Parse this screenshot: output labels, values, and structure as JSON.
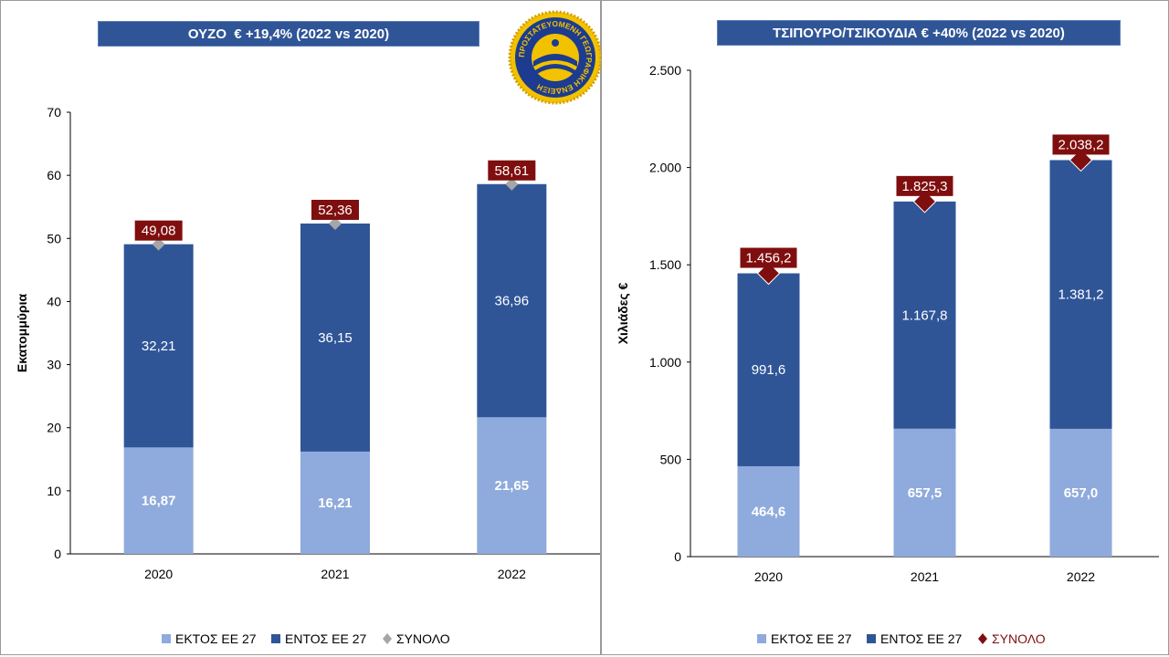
{
  "titles": {
    "left": "ΟΥΖΟ  € +19,4% (2022 vs 2020)",
    "right": "ΤΣΙΠΟΥΡΟ/ΤΣΙΚΟΥΔΙΑ € +40% (2022 vs 2020)"
  },
  "seal": {
    "text": "ΠΡΟΣΤΑΤΕΥΟΜΕΝΗ ΓΕΩΓΡΑΦΙΚΗ ΕΝΔΕΙΞΗ"
  },
  "colors": {
    "outside_eu": "#8faadc",
    "inside_eu": "#2f5597",
    "total_left": "#a6a6a6",
    "total_right": "#7f0e0e",
    "label_bg": "#7f0e0e"
  },
  "chart_data": [
    {
      "type": "bar",
      "stacked": true,
      "title": "ΟΥΖΟ  € +19,4% (2022 vs 2020)",
      "categories": [
        "2020",
        "2021",
        "2022"
      ],
      "ylabel": "Εκατομμύρια",
      "ylim": [
        0,
        70
      ],
      "yticks": [
        0,
        10,
        20,
        30,
        40,
        50,
        60,
        70
      ],
      "ytick_labels": [
        "0",
        "10",
        "20",
        "30",
        "40",
        "50",
        "60",
        "70"
      ],
      "series": [
        {
          "name": "ΕΚΤΟΣ ΕΕ 27",
          "values": [
            16.87,
            16.21,
            21.65
          ],
          "labels": [
            "16,87",
            "16,21",
            "21,65"
          ]
        },
        {
          "name": "ΕΝΤΟΣ ΕΕ 27",
          "values": [
            32.21,
            36.15,
            36.96
          ],
          "labels": [
            "32,21",
            "36,15",
            "36,96"
          ]
        }
      ],
      "total": {
        "name": "ΣΥΝΟΛΟ",
        "values": [
          49.08,
          52.36,
          58.61
        ],
        "labels": [
          "49,08",
          "52,36",
          "58,61"
        ]
      },
      "legend": [
        "ΕΚΤΟΣ ΕΕ 27",
        "ΕΝΤΟΣ ΕΕ 27",
        "ΣΥΝΟΛΟ"
      ],
      "legend_position": "bottom"
    },
    {
      "type": "bar",
      "stacked": true,
      "title": "ΤΣΙΠΟΥΡΟ/ΤΣΙΚΟΥΔΙΑ € +40% (2022 vs 2020)",
      "categories": [
        "2020",
        "2021",
        "2022"
      ],
      "ylabel": "Χιλιάδες €",
      "ylim": [
        0,
        2500
      ],
      "yticks": [
        0,
        500,
        1000,
        1500,
        2000,
        2500
      ],
      "ytick_labels": [
        "0",
        "500",
        "1.000",
        "1.500",
        "2.000",
        "2.500"
      ],
      "series": [
        {
          "name": "ΕΚΤΟΣ ΕΕ 27",
          "values": [
            464.6,
            657.5,
            657.0
          ],
          "labels": [
            "464,6",
            "657,5",
            "657,0"
          ]
        },
        {
          "name": "ΕΝΤΟΣ ΕΕ 27",
          "values": [
            991.6,
            1167.8,
            1381.2
          ],
          "labels": [
            "991,6",
            "1.167,8",
            "1.381,2"
          ]
        }
      ],
      "total": {
        "name": "ΣΥΝΟΛΟ",
        "values": [
          1456.2,
          1825.3,
          2038.2
        ],
        "labels": [
          "1.456,2",
          "1.825,3",
          "2.038,2"
        ]
      },
      "legend": [
        "ΕΚΤΟΣ ΕΕ 27",
        "ΕΝΤΟΣ ΕΕ 27",
        "ΣΥΝΟΛΟ"
      ],
      "legend_position": "bottom"
    }
  ]
}
